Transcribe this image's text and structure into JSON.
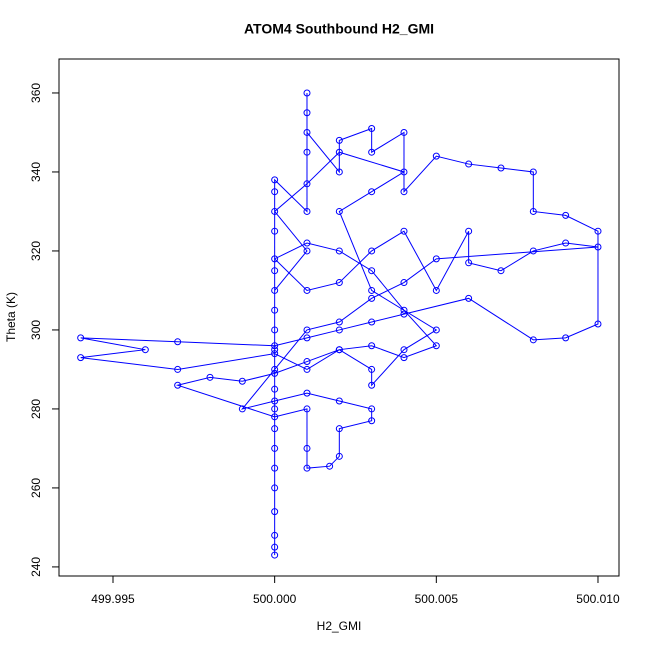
{
  "chart_data": {
    "type": "line",
    "markers": true,
    "title": "ATOM4 Southbound H2_GMI",
    "x_label": "H2_GMI",
    "y_label": "Theta (K)",
    "x": [
      500.0,
      500.0,
      500.0,
      500.0,
      500.0,
      500.0,
      500.0,
      500.0,
      500.0,
      500.0,
      500.0,
      500.001,
      500.001,
      500.001,
      500.001,
      500.001,
      500.002,
      500.002,
      500.003,
      500.003,
      500.004,
      500.004,
      500.005,
      500.006,
      500.007,
      500.008,
      500.008,
      500.009,
      500.01,
      500.01,
      500.009,
      500.008,
      500.006,
      500.004,
      500.003,
      500.002,
      500.001,
      500.0,
      499.997,
      499.994,
      499.996,
      499.994,
      499.997,
      500.0,
      500.001,
      500.002,
      500.003,
      500.004,
      500.005,
      500.004,
      500.003,
      500.002,
      500.001,
      500.0,
      500.001,
      500.002,
      500.003,
      500.004,
      500.005,
      500.006,
      500.006,
      500.007,
      500.008,
      500.009,
      500.01,
      500.005,
      500.004,
      500.003,
      500.002,
      500.001,
      500.0,
      499.999,
      500.0,
      500.001,
      500.002,
      500.003,
      500.003,
      500.002,
      500.002,
      500.0017,
      500.001,
      500.001,
      500.001,
      500.0,
      499.997,
      499.998,
      499.999,
      500.0,
      500.001,
      500.002,
      500.003,
      500.003,
      500.004,
      500.005,
      500.003,
      500.002,
      500.003,
      500.004,
      500.002,
      500.001,
      500.0,
      500.001,
      500.0,
      500.0,
      500.0,
      500.0,
      500.0,
      500.0,
      500.0
    ],
    "series": [
      {
        "color": "#0000ff",
        "values": [
          243,
          254,
          265,
          275,
          285,
          295,
          305,
          315,
          325,
          335,
          338,
          330,
          345,
          355,
          360,
          350,
          340,
          348,
          351,
          345,
          350,
          335,
          344,
          342,
          341,
          340,
          330,
          329,
          325,
          301.5,
          298,
          297.5,
          308,
          304,
          302,
          300,
          298,
          296,
          297,
          298,
          295,
          293,
          290,
          294,
          290,
          295,
          296,
          293,
          296,
          305,
          315,
          320,
          322,
          318,
          310,
          312,
          320,
          325,
          310,
          325,
          317,
          315,
          320,
          322,
          321,
          318,
          312,
          308,
          302,
          300,
          290,
          280,
          282,
          284,
          282,
          280,
          277,
          275,
          268,
          265.5,
          265,
          270,
          280,
          278,
          286,
          288,
          287,
          289,
          292,
          295,
          290,
          286,
          295,
          300,
          310,
          330,
          335,
          340,
          345,
          337,
          330,
          320,
          310,
          300,
          280,
          270,
          260,
          248,
          245
        ]
      }
    ],
    "xlim": [
      499.99333,
      500.01065
    ],
    "ylim": [
      237.7,
      368.6
    ],
    "xticks": [
      499.995,
      {
        "value": 500,
        "label": "500.000"
      },
      500.005,
      {
        "value": 500.01,
        "label": "500.010"
      }
    ],
    "yticks": [
      240,
      260,
      280,
      300,
      320,
      340,
      360
    ]
  }
}
